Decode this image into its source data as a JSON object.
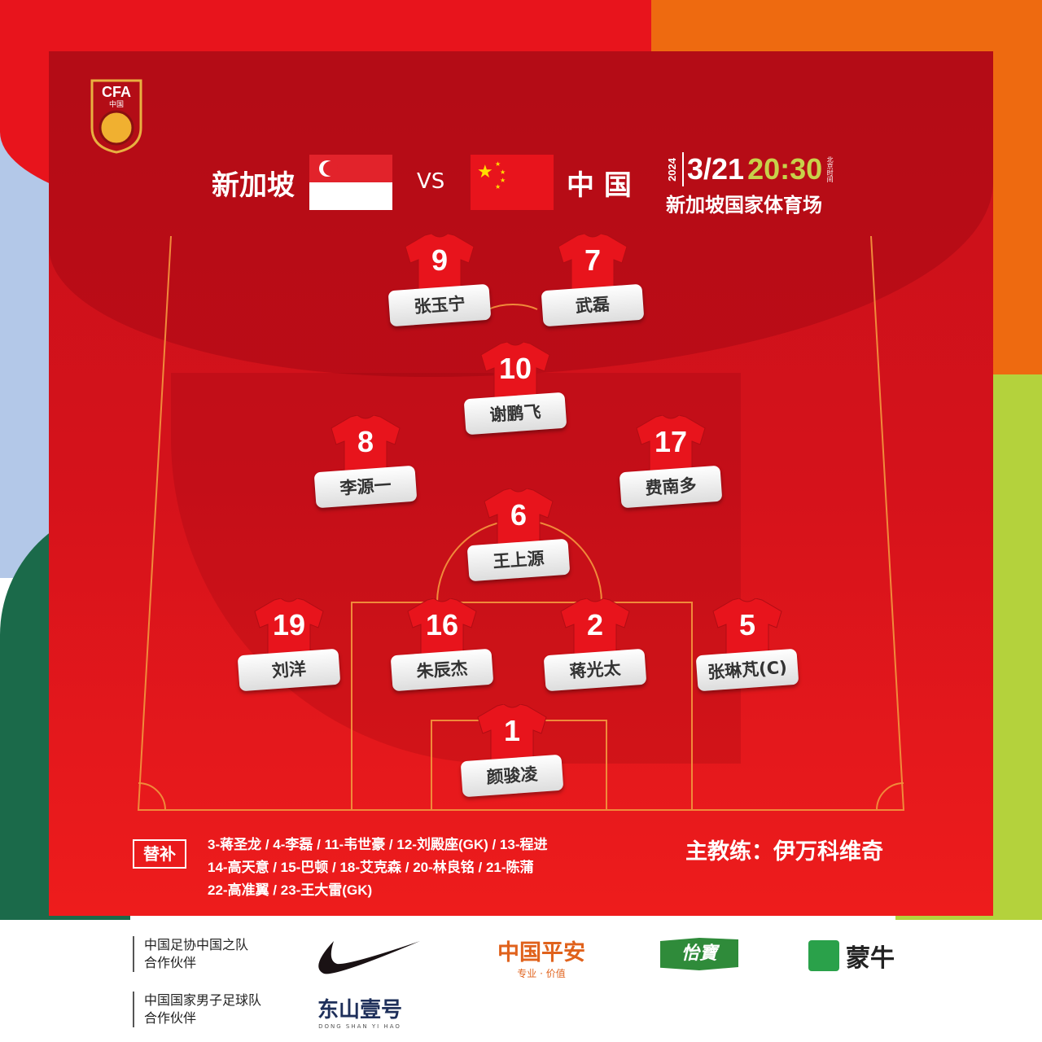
{
  "header": {
    "logo_text": "CFA 中国",
    "home_team": "新加坡",
    "vs": "VS",
    "away_team": "中 国",
    "year": "2024",
    "date": "3/21",
    "time": "20:30",
    "time_zone": "北京时间",
    "venue": "新加坡国家体育场"
  },
  "colors": {
    "panel": "#d5121b",
    "time": "#c7d24a",
    "orange": "#ee6a10",
    "blue": "#b3c8e8",
    "green": "#b4d23c",
    "dark_green": "#1b6a4a"
  },
  "lineup": [
    {
      "number": "9",
      "name": "张玉宁"
    },
    {
      "number": "7",
      "name": "武磊"
    },
    {
      "number": "10",
      "name": "谢鹏飞"
    },
    {
      "number": "8",
      "name": "李源一"
    },
    {
      "number": "17",
      "name": "费南多"
    },
    {
      "number": "6",
      "name": "王上源"
    },
    {
      "number": "19",
      "name": "刘洋"
    },
    {
      "number": "16",
      "name": "朱辰杰"
    },
    {
      "number": "2",
      "name": "蒋光太"
    },
    {
      "number": "5",
      "name": "张琳芃(C)"
    },
    {
      "number": "1",
      "name": "颜骏凌"
    }
  ],
  "substitutes": {
    "label": "替补",
    "lines": [
      "3-蒋圣龙 / 4-李磊 / 11-韦世豪 / 12-刘殿座(GK) / 13-程进",
      "14-高天意 / 15-巴顿 / 18-艾克森 / 20-林良铭 / 21-陈蒲",
      "22-高准翼 / 23-王大雷(GK)"
    ]
  },
  "coach": "主教练：伊万科维奇",
  "sponsors": {
    "partner1": [
      "中国足协中国之队",
      "合作伙伴"
    ],
    "partner2": [
      "中国国家男子足球队",
      "合作伙伴"
    ],
    "nike": "nike-swoosh",
    "pingan": "中国平安",
    "pingan_slogan": "专业 · 价值",
    "yibao": "怡寶",
    "mengniu": "蒙牛",
    "dongshan": "东山壹号",
    "dongshan_sub": "DONG SHAN YI HAO"
  }
}
